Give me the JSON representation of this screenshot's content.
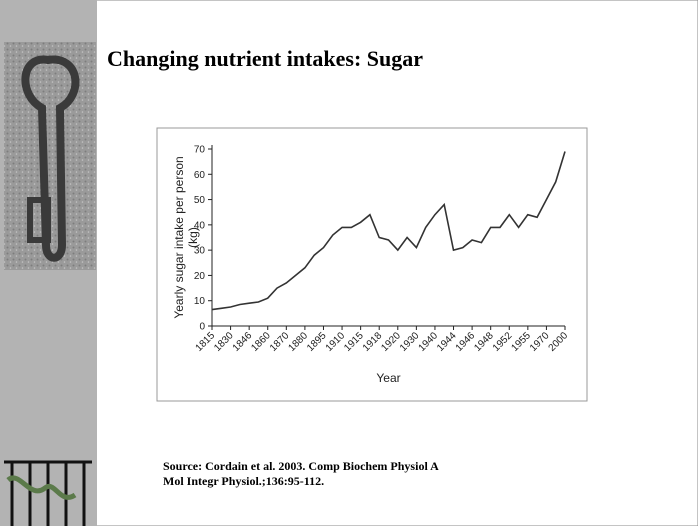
{
  "title": "Changing nutrient intakes: Sugar",
  "source": [
    "Source: Cordain et al. 2003. Comp Biochem Physiol A",
    "Mol Integr Physiol.;136:95-112."
  ],
  "chart_data": {
    "type": "line",
    "ylabel": [
      "Yearly sugar intake per person",
      "(kg)"
    ],
    "xlabel": "Year",
    "categories": [
      "1815",
      null,
      "1830",
      null,
      "1846",
      null,
      "1860",
      null,
      "1870",
      null,
      "1880",
      null,
      "1895",
      null,
      "1910",
      null,
      "1915",
      null,
      "1918",
      null,
      "1920",
      null,
      "1930",
      null,
      "1940",
      null,
      "1944",
      null,
      "1946",
      null,
      "1948",
      null,
      "1952",
      null,
      "1955",
      null,
      "1970",
      null,
      "2000"
    ],
    "values": [
      6.5,
      7,
      7.5,
      8.5,
      9,
      9.5,
      11,
      15,
      17,
      20,
      23,
      28,
      31,
      36,
      39,
      39,
      41,
      44,
      35,
      34,
      30,
      35,
      31,
      39,
      44,
      48,
      30,
      31,
      34,
      33,
      39,
      39,
      44,
      39,
      44,
      43,
      50,
      57,
      69
    ],
    "color": "#333333",
    "ylim": [
      0,
      70
    ],
    "yticks": [
      0,
      10,
      20,
      30,
      40,
      50,
      60,
      70
    ]
  }
}
